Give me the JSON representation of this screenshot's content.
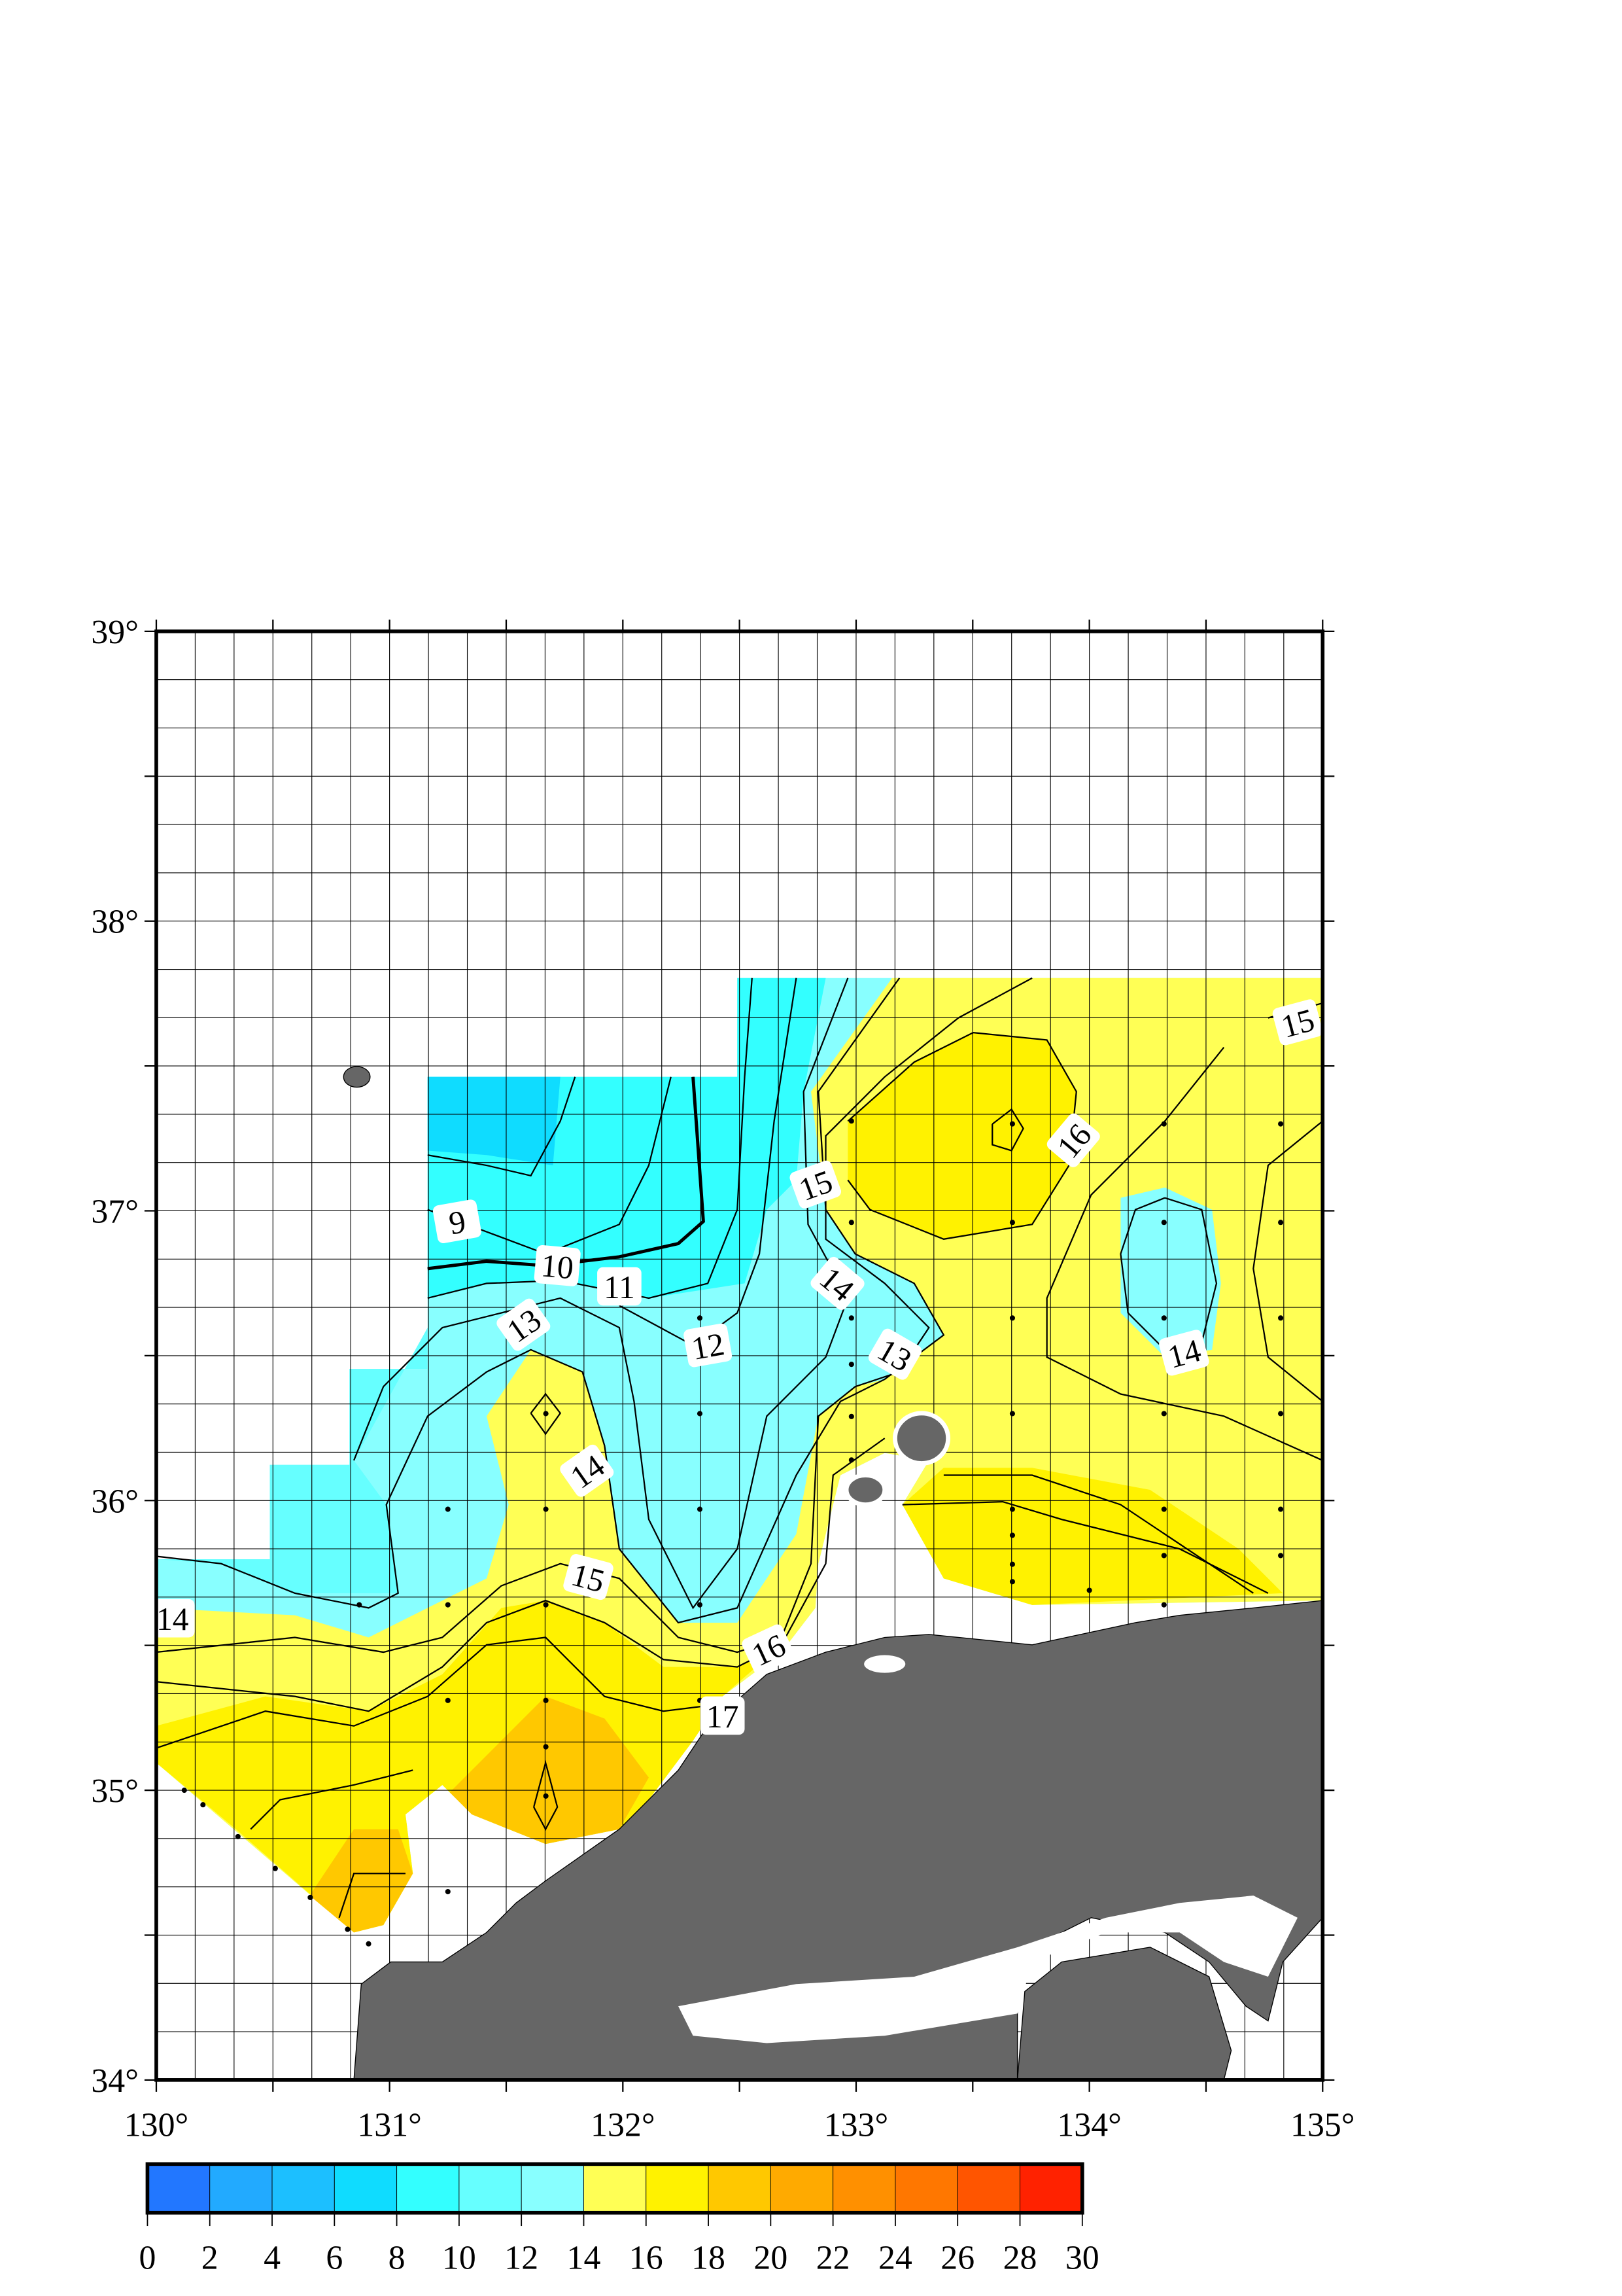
{
  "chart_data": {
    "type": "heatmap",
    "title": "",
    "xlabel": "",
    "ylabel": "",
    "xlim": [
      130,
      135
    ],
    "ylim": [
      34,
      39
    ],
    "x_ticks": [
      "130°",
      "131°",
      "132°",
      "133°",
      "134°",
      "135°"
    ],
    "y_ticks": [
      "34°",
      "35°",
      "36°",
      "37°",
      "38°",
      "39°"
    ],
    "grid": true,
    "grid_spacing_minutes": 10,
    "colorbar": {
      "placement": "bottom",
      "ticks": [
        "0",
        "2",
        "4",
        "6",
        "8",
        "10",
        "12",
        "14",
        "16",
        "18",
        "20",
        "22",
        "24",
        "26",
        "28",
        "30"
      ],
      "colors": [
        "#2277ff",
        "#22aaff",
        "#1cbfff",
        "#0fdcff",
        "#33ffff",
        "#66ffff",
        "#88ffff",
        "#ffff55",
        "#fff200",
        "#ffc800",
        "#ffaa00",
        "#ff9000",
        "#ff7700",
        "#ff5500",
        "#ff2200"
      ]
    },
    "land_color": "#666666",
    "contour_labels": [
      "9",
      "10",
      "11",
      "12",
      "13",
      "14",
      "14",
      "14",
      "14",
      "15",
      "15",
      "15",
      "16",
      "16",
      "17",
      "13"
    ],
    "stations": [
      [
        132.33,
        36.63
      ],
      [
        132.33,
        36.3
      ],
      [
        132.33,
        35.97
      ],
      [
        132.33,
        35.64
      ],
      [
        132.33,
        35.31
      ],
      [
        131.67,
        36.3
      ],
      [
        131.67,
        35.97
      ],
      [
        131.67,
        35.64
      ],
      [
        131.67,
        35.31
      ],
      [
        131.67,
        35.15
      ],
      [
        131.67,
        34.98
      ],
      [
        131.25,
        35.97
      ],
      [
        131.25,
        35.64
      ],
      [
        131.25,
        35.31
      ],
      [
        131.25,
        34.65
      ],
      [
        130.87,
        35.64
      ],
      [
        130.12,
        35.0
      ],
      [
        130.2,
        34.95
      ],
      [
        130.35,
        34.84
      ],
      [
        130.51,
        34.73
      ],
      [
        130.66,
        34.63
      ],
      [
        130.82,
        34.52
      ],
      [
        130.91,
        34.47
      ],
      [
        132.98,
        37.31
      ],
      [
        132.98,
        36.96
      ],
      [
        132.98,
        36.63
      ],
      [
        132.98,
        36.47
      ],
      [
        132.98,
        36.29
      ],
      [
        132.98,
        36.14
      ],
      [
        133.67,
        37.3
      ],
      [
        133.67,
        36.96
      ],
      [
        133.67,
        36.63
      ],
      [
        133.67,
        36.3
      ],
      [
        133.67,
        35.97
      ],
      [
        133.67,
        35.88
      ],
      [
        133.67,
        35.78
      ],
      [
        133.67,
        35.72
      ],
      [
        134.0,
        35.69
      ],
      [
        134.32,
        37.3
      ],
      [
        134.32,
        36.96
      ],
      [
        134.32,
        36.63
      ],
      [
        134.32,
        36.3
      ],
      [
        134.32,
        35.97
      ],
      [
        134.32,
        35.81
      ],
      [
        134.32,
        35.64
      ],
      [
        134.82,
        37.3
      ],
      [
        134.82,
        36.96
      ],
      [
        134.82,
        36.63
      ],
      [
        134.82,
        36.3
      ],
      [
        134.82,
        35.97
      ],
      [
        134.82,
        35.81
      ]
    ]
  }
}
